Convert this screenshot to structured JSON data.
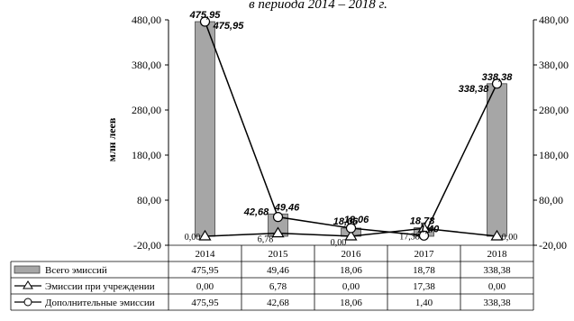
{
  "page": {
    "title_fragment": "в периода 2014 – 2018 г."
  },
  "chart_data": {
    "type": "bar",
    "ylabel": "млн леев",
    "ylim": [
      -20,
      480
    ],
    "y_ticks": [
      "480,00",
      "380,00",
      "280,00",
      "180,00",
      "80,00",
      "-20,00"
    ],
    "categories": [
      "2014",
      "2015",
      "2016",
      "2017",
      "2018"
    ],
    "grid": false,
    "series": [
      {
        "name": "Всего эмиссий",
        "kind": "bar",
        "color": "#a6a6a6",
        "values": [
          475.95,
          49.46,
          18.06,
          18.78,
          338.38
        ],
        "labels": [
          "475,95",
          "49,46",
          "18,06",
          "18,78",
          "338,38"
        ]
      },
      {
        "name": "Эмиссии при учреждении",
        "kind": "line",
        "marker": "triangle",
        "values": [
          0.0,
          6.78,
          0.0,
          17.38,
          0.0
        ],
        "labels": [
          "0,00",
          "6,78",
          "0,00",
          "17,38",
          "0,00"
        ]
      },
      {
        "name": "Дополнительные эмиссии",
        "kind": "line",
        "marker": "circle",
        "values": [
          475.95,
          42.68,
          18.06,
          1.4,
          338.38
        ],
        "labels": [
          "475,95",
          "42,68",
          "18,06",
          "1,40",
          "338,38"
        ]
      }
    ]
  }
}
